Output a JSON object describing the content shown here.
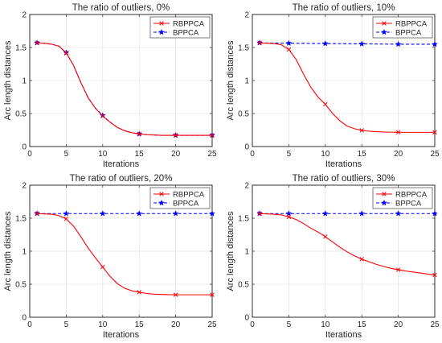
{
  "chart_data": [
    {
      "type": "line",
      "title": "The ratio of outliers, 0%",
      "xlabel": "Iterations",
      "ylabel": "Arc length distances",
      "xlim": [
        0,
        25
      ],
      "ylim": [
        0,
        2
      ],
      "xticks": [
        0,
        5,
        10,
        15,
        20,
        25
      ],
      "yticks": [
        0,
        0.5,
        1,
        1.5,
        2
      ],
      "grid": true,
      "legend": "top-right",
      "series": [
        {
          "name": "RBPPCA",
          "color": "#ff0000",
          "style": "solid",
          "marker": "x",
          "x": [
            1,
            2,
            3,
            4,
            5,
            6,
            7,
            8,
            9,
            10,
            11,
            12,
            13,
            14,
            15,
            16,
            17,
            18,
            19,
            20,
            21,
            22,
            23,
            24,
            25
          ],
          "y": [
            1.57,
            1.565,
            1.55,
            1.52,
            1.42,
            1.23,
            0.97,
            0.74,
            0.58,
            0.46,
            0.37,
            0.29,
            0.24,
            0.21,
            0.19,
            0.18,
            0.175,
            0.17,
            0.17,
            0.17,
            0.17,
            0.17,
            0.17,
            0.17,
            0.17
          ],
          "marker_x": [
            1,
            5,
            10,
            15,
            20,
            25
          ]
        },
        {
          "name": "BPPCA",
          "color": "#0000ff",
          "style": "dashed",
          "marker": "star",
          "x": [
            1,
            2,
            3,
            4,
            5,
            6,
            7,
            8,
            9,
            10,
            11,
            12,
            13,
            14,
            15,
            16,
            17,
            18,
            19,
            20,
            21,
            22,
            23,
            24,
            25
          ],
          "y": [
            1.57,
            1.565,
            1.55,
            1.52,
            1.42,
            1.23,
            0.97,
            0.74,
            0.58,
            0.47,
            0.37,
            0.29,
            0.24,
            0.21,
            0.19,
            0.18,
            0.175,
            0.17,
            0.17,
            0.17,
            0.17,
            0.17,
            0.17,
            0.17,
            0.17
          ],
          "marker_x": [
            1,
            5,
            10,
            15,
            20,
            25
          ]
        }
      ]
    },
    {
      "type": "line",
      "title": "The ratio of outliers, 10%",
      "xlabel": "Iterations",
      "ylabel": "Arc length distances",
      "xlim": [
        0,
        25
      ],
      "ylim": [
        0,
        2
      ],
      "xticks": [
        0,
        5,
        10,
        15,
        20,
        25
      ],
      "yticks": [
        0,
        0.5,
        1,
        1.5,
        2
      ],
      "grid": true,
      "legend": "top-right",
      "series": [
        {
          "name": "RBPPCA",
          "color": "#ff0000",
          "style": "solid",
          "marker": "x",
          "x": [
            1,
            2,
            3,
            4,
            5,
            6,
            7,
            8,
            9,
            10,
            11,
            12,
            13,
            14,
            15,
            16,
            17,
            18,
            19,
            20,
            21,
            22,
            23,
            24,
            25
          ],
          "y": [
            1.57,
            1.565,
            1.56,
            1.54,
            1.47,
            1.32,
            1.1,
            0.9,
            0.75,
            0.64,
            0.5,
            0.39,
            0.31,
            0.27,
            0.245,
            0.232,
            0.225,
            0.22,
            0.218,
            0.216,
            0.215,
            0.215,
            0.215,
            0.215,
            0.215
          ],
          "marker_x": [
            1,
            5,
            10,
            15,
            20,
            25
          ]
        },
        {
          "name": "BPPCA",
          "color": "#0000ff",
          "style": "dashed",
          "marker": "star",
          "x": [
            1,
            5,
            10,
            15,
            20,
            25
          ],
          "y": [
            1.57,
            1.565,
            1.56,
            1.555,
            1.55,
            1.55
          ],
          "marker_x": [
            1,
            5,
            10,
            15,
            20,
            25
          ]
        }
      ]
    },
    {
      "type": "line",
      "title": "The ratio of outliers, 20%",
      "xlabel": "Iterations",
      "ylabel": "Arc length distances",
      "xlim": [
        0,
        25
      ],
      "ylim": [
        0,
        2
      ],
      "xticks": [
        0,
        5,
        10,
        15,
        20,
        25
      ],
      "yticks": [
        0,
        0.5,
        1,
        1.5,
        2
      ],
      "grid": true,
      "legend": "top-right",
      "series": [
        {
          "name": "RBPPCA",
          "color": "#ff0000",
          "style": "solid",
          "marker": "x",
          "x": [
            1,
            2,
            3,
            4,
            5,
            6,
            7,
            8,
            9,
            10,
            11,
            12,
            13,
            14,
            15,
            16,
            17,
            18,
            19,
            20,
            21,
            22,
            23,
            24,
            25
          ],
          "y": [
            1.57,
            1.565,
            1.56,
            1.54,
            1.49,
            1.38,
            1.22,
            1.05,
            0.9,
            0.76,
            0.62,
            0.51,
            0.44,
            0.4,
            0.38,
            0.36,
            0.35,
            0.345,
            0.342,
            0.34,
            0.34,
            0.34,
            0.34,
            0.34,
            0.34
          ],
          "marker_x": [
            1,
            5,
            10,
            15,
            20,
            25
          ]
        },
        {
          "name": "BPPCA",
          "color": "#0000ff",
          "style": "dashed",
          "marker": "star",
          "x": [
            1,
            5,
            10,
            15,
            20,
            25
          ],
          "y": [
            1.57,
            1.57,
            1.57,
            1.57,
            1.57,
            1.57
          ],
          "marker_x": [
            1,
            5,
            10,
            15,
            20,
            25
          ]
        }
      ]
    },
    {
      "type": "line",
      "title": "The ratio of outliers, 30%",
      "xlabel": "Iterations",
      "ylabel": "Arc length distances",
      "xlim": [
        0,
        25
      ],
      "ylim": [
        0,
        2
      ],
      "xticks": [
        0,
        5,
        10,
        15,
        20,
        25
      ],
      "yticks": [
        0,
        0.5,
        1,
        1.5,
        2
      ],
      "grid": true,
      "legend": "top-right",
      "series": [
        {
          "name": "RBPPCA",
          "color": "#ff0000",
          "style": "solid",
          "marker": "x",
          "x": [
            1,
            2,
            3,
            4,
            5,
            6,
            7,
            8,
            9,
            10,
            11,
            12,
            13,
            14,
            15,
            16,
            17,
            18,
            19,
            20,
            21,
            22,
            23,
            24,
            25
          ],
          "y": [
            1.57,
            1.565,
            1.56,
            1.55,
            1.52,
            1.48,
            1.42,
            1.35,
            1.29,
            1.22,
            1.14,
            1.06,
            0.99,
            0.93,
            0.88,
            0.84,
            0.8,
            0.77,
            0.74,
            0.72,
            0.7,
            0.685,
            0.67,
            0.655,
            0.64
          ],
          "marker_x": [
            1,
            5,
            10,
            15,
            20,
            25
          ]
        },
        {
          "name": "BPPCA",
          "color": "#0000ff",
          "style": "dashed",
          "marker": "star",
          "x": [
            1,
            5,
            10,
            15,
            20,
            25
          ],
          "y": [
            1.57,
            1.57,
            1.57,
            1.57,
            1.57,
            1.57
          ],
          "marker_x": [
            1,
            5,
            10,
            15,
            20,
            25
          ]
        }
      ]
    }
  ]
}
